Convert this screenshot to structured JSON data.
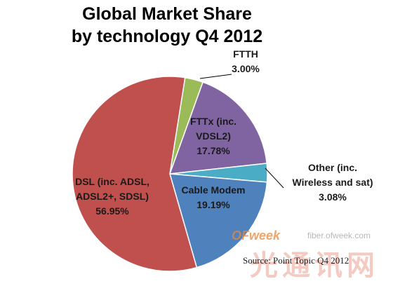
{
  "chart_data": {
    "type": "pie",
    "title_lines": [
      "Global Market Share",
      "by technology Q4 2012"
    ],
    "slices": [
      {
        "label_lines": [
          "FTTH"
        ],
        "value": 3.0,
        "value_text": "3.00%",
        "color": "#9bbb59"
      },
      {
        "label_lines": [
          "FTTx (inc.",
          "VDSL2)"
        ],
        "value": 17.78,
        "value_text": "17.78%",
        "color": "#8064a2"
      },
      {
        "label_lines": [
          "Other (inc.",
          "Wireless and sat)"
        ],
        "value": 3.08,
        "value_text": "3.08%",
        "color": "#4bacc6"
      },
      {
        "label_lines": [
          "Cable Modem"
        ],
        "value": 19.19,
        "value_text": "19.19%",
        "color": "#4f81bd"
      },
      {
        "label_lines": [
          "DSL (inc. ADSL,",
          "ADSL2+, SDSL)"
        ],
        "value": 56.95,
        "value_text": "56.95%",
        "color": "#c0504d"
      }
    ],
    "source": "Source:  Point Topic Q4 2012"
  },
  "watermark": {
    "brand": "OFweek",
    "url": "fiber.ofweek.com",
    "cn": "光通讯网"
  }
}
